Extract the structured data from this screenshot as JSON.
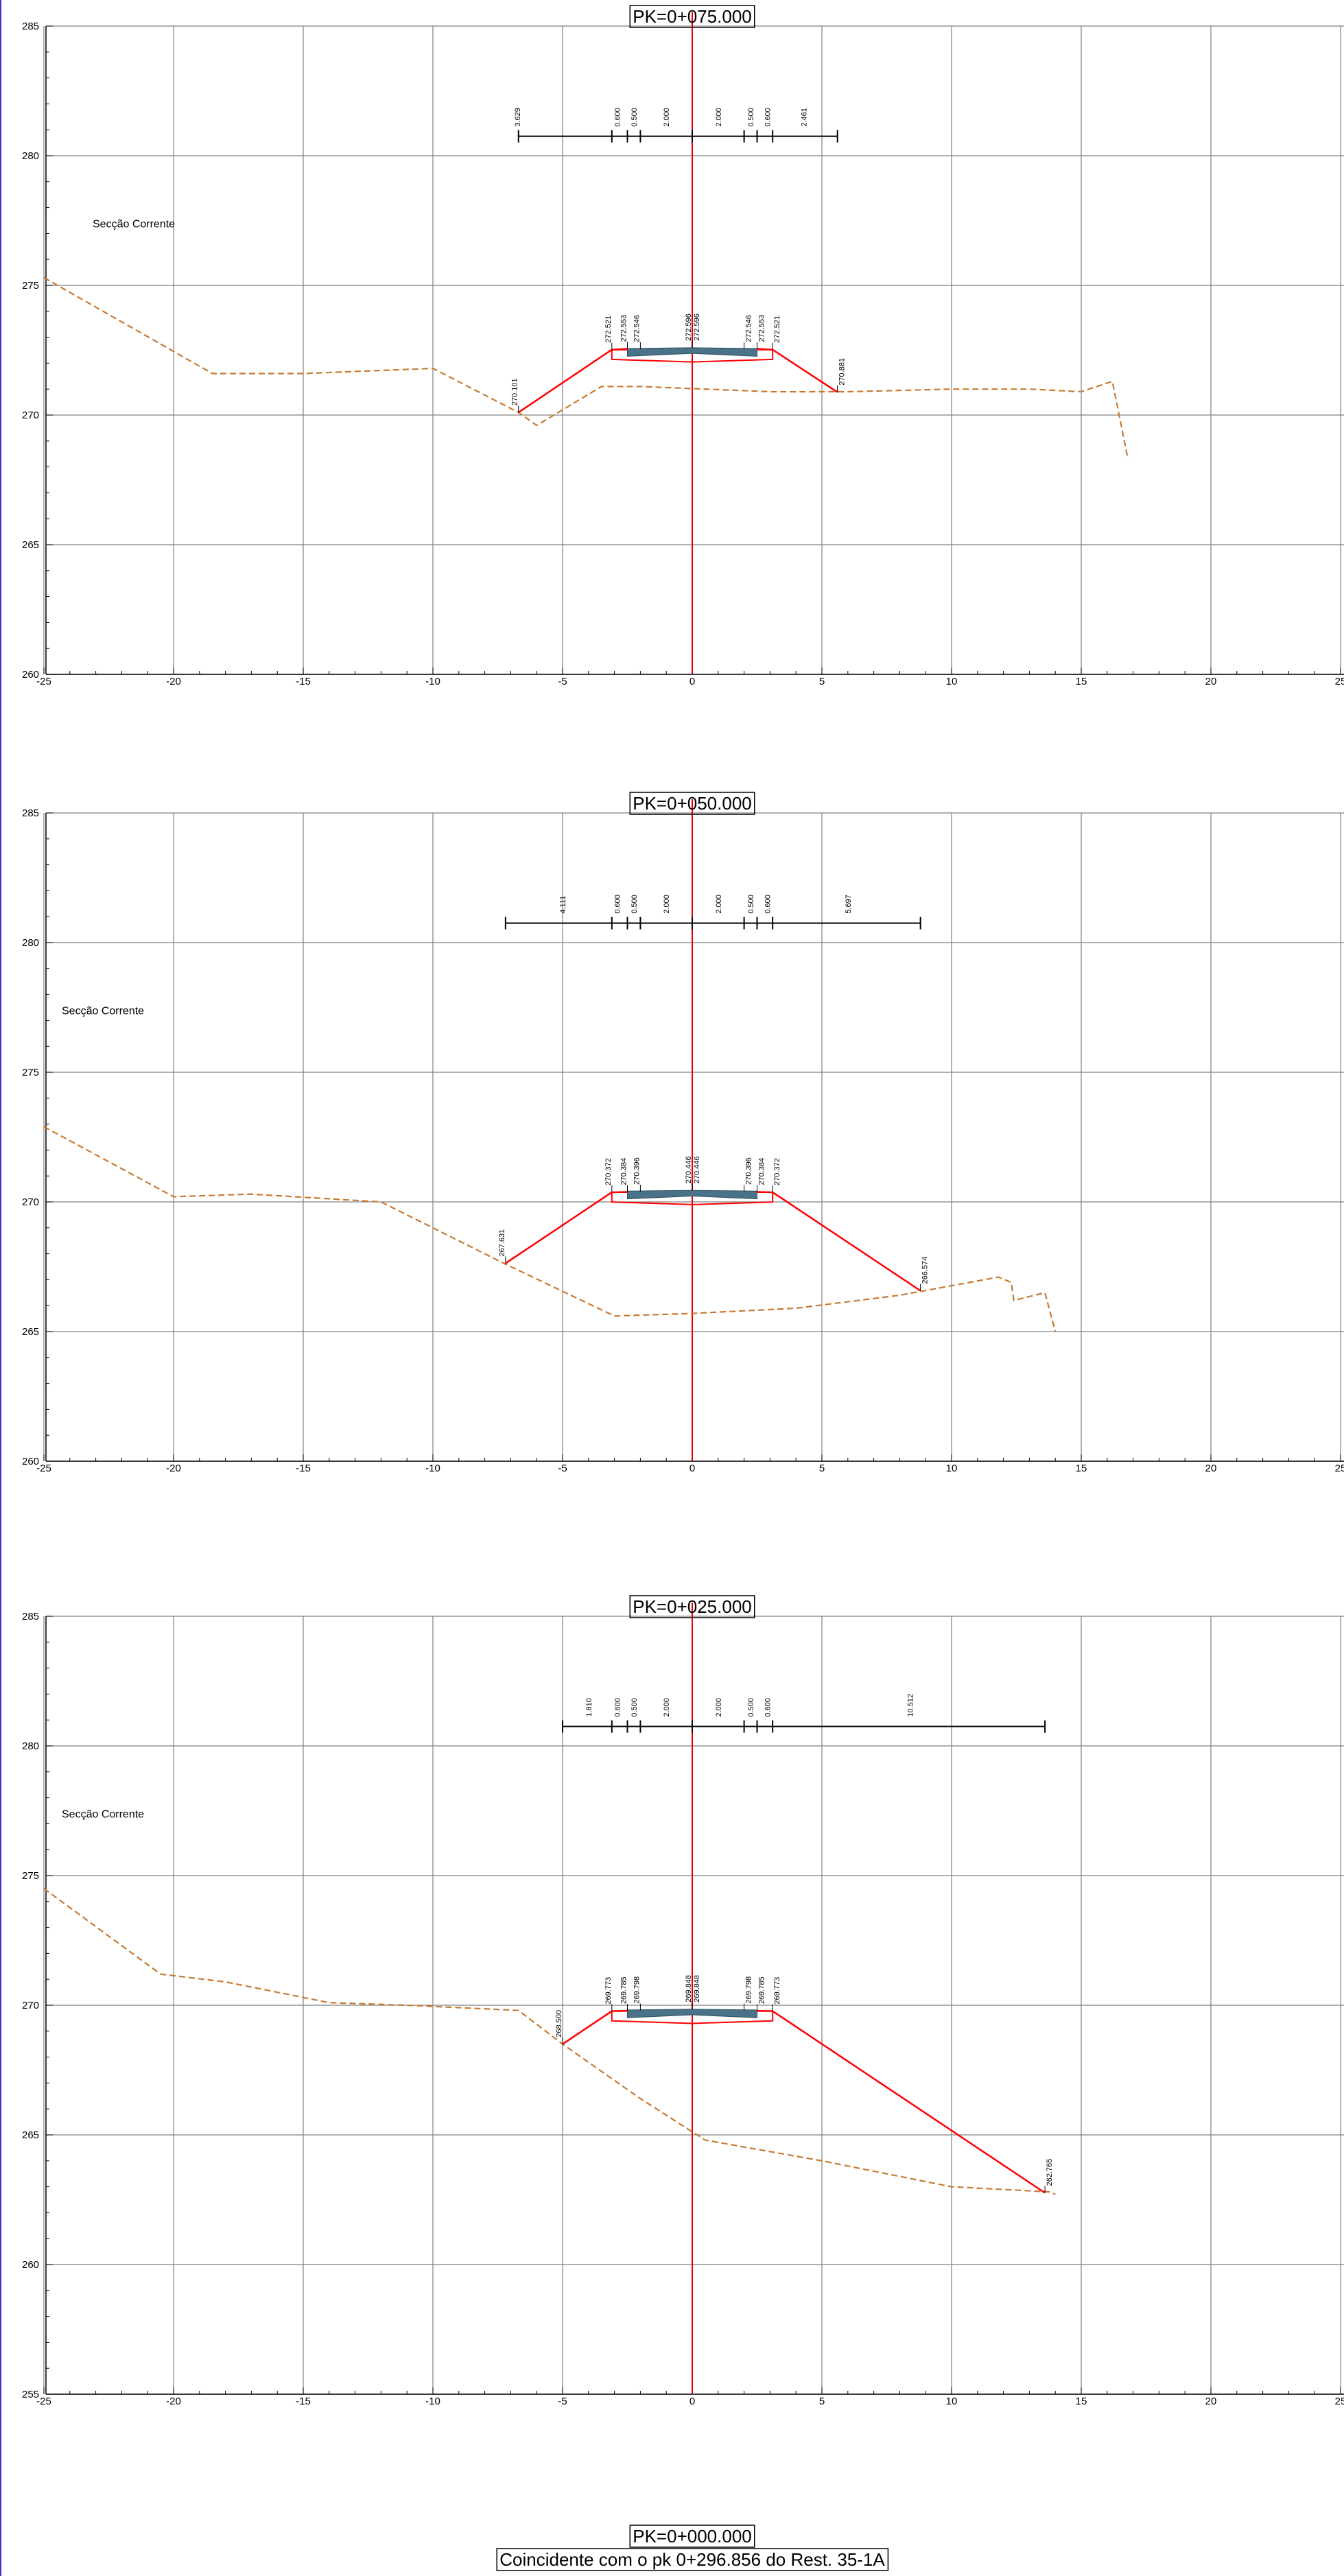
{
  "colors": {
    "grid": "#808080",
    "axis": "#000000",
    "centerline": "#e00000",
    "terrain": "#c87a32",
    "design": "#ff0000",
    "pavement": "#4a7288",
    "frame": "#3a2fd0"
  },
  "sections": [
    {
      "pk": "PK=0+075.000",
      "label": "Secção Corrente",
      "y_ticks": [
        "285",
        "280",
        "275",
        "270",
        "265",
        "260"
      ],
      "x_ticks": [
        "-25",
        "-20",
        "-15",
        "-10",
        "-5",
        "0",
        "5",
        "10",
        "15",
        "20",
        "25"
      ],
      "ylim": [
        260,
        285
      ],
      "dims": [
        {
          "x": -6.75,
          "text": "3.629"
        },
        {
          "x": -2.9,
          "text": "0.600"
        },
        {
          "x": -2.25,
          "text": "0.500"
        },
        {
          "x": -1.0,
          "text": "2.000"
        },
        {
          "x": 1.0,
          "text": "2.000"
        },
        {
          "x": 2.25,
          "text": "0.500"
        },
        {
          "x": 2.9,
          "text": "0.600"
        },
        {
          "x": 4.3,
          "text": "2.461"
        }
      ],
      "dim_ticks": [
        -6.7,
        -3.1,
        -2.5,
        -2.0,
        0,
        2.0,
        2.5,
        3.1,
        5.6
      ],
      "elev_left": [
        {
          "x": -6.7,
          "y": 270.101,
          "text": "270.101"
        },
        {
          "x": -3.1,
          "y": 272.521,
          "text": "272.521"
        },
        {
          "x": -2.5,
          "y": 272.553,
          "text": "272.553"
        },
        {
          "x": -2.0,
          "y": 272.546,
          "text": "272.546"
        },
        {
          "x": 0,
          "y": 272.596,
          "text": "272.596"
        }
      ],
      "elev_right": [
        {
          "x": 0,
          "y": 272.596,
          "text": "272.596"
        },
        {
          "x": 2.0,
          "y": 272.546,
          "text": "272.546"
        },
        {
          "x": 2.5,
          "y": 272.553,
          "text": "272.553"
        },
        {
          "x": 3.1,
          "y": 272.521,
          "text": "272.521"
        },
        {
          "x": 5.6,
          "y": 270.881,
          "text": "270.881"
        }
      ],
      "ground": [
        [
          -25,
          275.3
        ],
        [
          -18.5,
          271.6
        ],
        [
          -15,
          271.6
        ],
        [
          -10,
          271.8
        ],
        [
          -6.7,
          270.1
        ],
        [
          -6,
          269.6
        ],
        [
          -3.5,
          271.1
        ],
        [
          -2,
          271.1
        ],
        [
          3,
          270.9
        ],
        [
          6,
          270.9
        ],
        [
          10,
          271.0
        ],
        [
          13,
          271.0
        ],
        [
          15,
          270.9
        ],
        [
          16.2,
          271.3
        ],
        [
          16.8,
          268.3
        ]
      ],
      "design_left": [
        [
          -6.7,
          270.101
        ],
        [
          -3.1,
          272.521
        ],
        [
          -2.5,
          272.553
        ]
      ],
      "design_right": [
        [
          2.5,
          272.553
        ],
        [
          3.1,
          272.521
        ],
        [
          5.6,
          270.881
        ]
      ],
      "pave_top": 272.596,
      "pave_edge": 272.546
    },
    {
      "pk": "PK=0+050.000",
      "label": "Secção Corrente",
      "y_ticks": [
        "285",
        "280",
        "275",
        "270",
        "265",
        "260"
      ],
      "x_ticks": [
        "-25",
        "-20",
        "-15",
        "-10",
        "-5",
        "0",
        "5",
        "10",
        "15",
        "20",
        "25"
      ],
      "ylim": [
        260,
        285
      ],
      "dims": [
        {
          "x": -5.0,
          "text": "4.111"
        },
        {
          "x": -2.9,
          "text": "0.600"
        },
        {
          "x": -2.25,
          "text": "0.500"
        },
        {
          "x": -1.0,
          "text": "2.000"
        },
        {
          "x": 1.0,
          "text": "2.000"
        },
        {
          "x": 2.25,
          "text": "0.500"
        },
        {
          "x": 2.9,
          "text": "0.600"
        },
        {
          "x": 6.0,
          "text": "5.697"
        }
      ],
      "dim_ticks": [
        -7.2,
        -3.1,
        -2.5,
        -2.0,
        0,
        2.0,
        2.5,
        3.1,
        8.8
      ],
      "elev_left": [
        {
          "x": -7.2,
          "y": 267.631,
          "text": "267.631"
        },
        {
          "x": -3.1,
          "y": 270.372,
          "text": "270.372"
        },
        {
          "x": -2.5,
          "y": 270.384,
          "text": "270.384"
        },
        {
          "x": -2.0,
          "y": 270.396,
          "text": "270.396"
        },
        {
          "x": 0,
          "y": 270.446,
          "text": "270.446"
        }
      ],
      "elev_right": [
        {
          "x": 0,
          "y": 270.446,
          "text": "270.446"
        },
        {
          "x": 2.0,
          "y": 270.396,
          "text": "270.396"
        },
        {
          "x": 2.5,
          "y": 270.384,
          "text": "270.384"
        },
        {
          "x": 3.1,
          "y": 270.372,
          "text": "270.372"
        },
        {
          "x": 8.8,
          "y": 266.574,
          "text": "266.574"
        }
      ],
      "ground": [
        [
          -25,
          272.9
        ],
        [
          -20,
          270.2
        ],
        [
          -17,
          270.3
        ],
        [
          -12,
          270.0
        ],
        [
          -7.2,
          267.6
        ],
        [
          -3,
          265.6
        ],
        [
          0,
          265.7
        ],
        [
          4,
          265.9
        ],
        [
          8,
          266.4
        ],
        [
          11.8,
          267.1
        ],
        [
          12.3,
          266.9
        ],
        [
          12.4,
          266.2
        ],
        [
          13.6,
          266.5
        ],
        [
          14.0,
          265.0
        ]
      ],
      "design_left": [
        [
          -7.2,
          267.631
        ],
        [
          -3.1,
          270.372
        ],
        [
          -2.5,
          270.384
        ]
      ],
      "design_right": [
        [
          2.5,
          270.384
        ],
        [
          3.1,
          270.372
        ],
        [
          8.8,
          266.574
        ]
      ],
      "pave_top": 270.446,
      "pave_edge": 270.396
    },
    {
      "pk": "PK=0+025.000",
      "label": "Secção Corrente",
      "y_ticks": [
        "285",
        "280",
        "275",
        "270",
        "265",
        "260",
        "255"
      ],
      "x_ticks": [
        "-25",
        "-20",
        "-15",
        "-10",
        "-5",
        "0",
        "5",
        "10",
        "15",
        "20",
        "25"
      ],
      "ylim": [
        255,
        285
      ],
      "dims": [
        {
          "x": -4.0,
          "text": "1.810"
        },
        {
          "x": -2.9,
          "text": "0.600"
        },
        {
          "x": -2.25,
          "text": "0.500"
        },
        {
          "x": -1.0,
          "text": "2.000"
        },
        {
          "x": 1.0,
          "text": "2.000"
        },
        {
          "x": 2.25,
          "text": "0.500"
        },
        {
          "x": 2.9,
          "text": "0.600"
        },
        {
          "x": 8.4,
          "text": "10.512"
        }
      ],
      "dim_ticks": [
        -5.0,
        -3.1,
        -2.5,
        -2.0,
        0,
        2.0,
        2.5,
        3.1,
        13.6
      ],
      "elev_left": [
        {
          "x": -5.0,
          "y": 268.5,
          "text": "268.500"
        },
        {
          "x": -3.1,
          "y": 269.773,
          "text": "269.773"
        },
        {
          "x": -2.5,
          "y": 269.785,
          "text": "269.785"
        },
        {
          "x": -2.0,
          "y": 269.798,
          "text": "269.798"
        },
        {
          "x": 0,
          "y": 269.848,
          "text": "269.848"
        }
      ],
      "elev_right": [
        {
          "x": 0,
          "y": 269.848,
          "text": "269.848"
        },
        {
          "x": 2.0,
          "y": 269.798,
          "text": "269.798"
        },
        {
          "x": 2.5,
          "y": 269.785,
          "text": "269.785"
        },
        {
          "x": 3.1,
          "y": 269.773,
          "text": "269.773"
        },
        {
          "x": 13.6,
          "y": 262.765,
          "text": "262.765"
        }
      ],
      "ground": [
        [
          -25,
          274.5
        ],
        [
          -20.5,
          271.2
        ],
        [
          -18,
          270.9
        ],
        [
          -14,
          270.1
        ],
        [
          -11,
          270.0
        ],
        [
          -6.7,
          269.8
        ],
        [
          -5,
          268.5
        ],
        [
          -2,
          266.4
        ],
        [
          0.5,
          264.8
        ],
        [
          5,
          264.0
        ],
        [
          10,
          263.0
        ],
        [
          13.8,
          262.8
        ],
        [
          14.0,
          262.7
        ]
      ],
      "design_left": [
        [
          -5.0,
          268.5
        ],
        [
          -3.1,
          269.773
        ],
        [
          -2.5,
          269.785
        ]
      ],
      "design_right": [
        [
          2.5,
          269.785
        ],
        [
          3.1,
          269.773
        ],
        [
          13.6,
          262.765
        ]
      ],
      "pave_top": 269.848,
      "pave_edge": 269.798
    }
  ],
  "footer": {
    "pk": "PK=0+000.000",
    "note": "Coincidente com o pk 0+296.856 do Rest. 35-1A"
  }
}
